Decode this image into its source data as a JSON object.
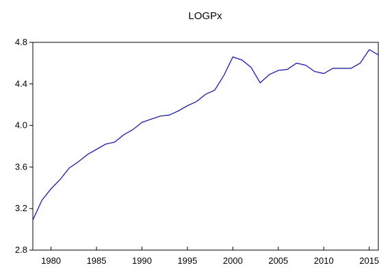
{
  "chart_data": {
    "type": "line",
    "title": "LOGPx",
    "x": [
      1978,
      1979,
      1980,
      1981,
      1982,
      1983,
      1984,
      1985,
      1986,
      1987,
      1988,
      1989,
      1990,
      1991,
      1992,
      1993,
      1994,
      1995,
      1996,
      1997,
      1998,
      1999,
      2000,
      2001,
      2002,
      2003,
      2004,
      2005,
      2006,
      2007,
      2008,
      2009,
      2010,
      2011,
      2012,
      2013,
      2014,
      2015,
      2016
    ],
    "series": [
      {
        "name": "LOGPx",
        "color": "#0000ff",
        "values": [
          3.09,
          3.28,
          3.39,
          3.48,
          3.59,
          3.65,
          3.72,
          3.77,
          3.82,
          3.84,
          3.91,
          3.96,
          4.03,
          4.06,
          4.09,
          4.1,
          4.14,
          4.19,
          4.23,
          4.3,
          4.34,
          4.48,
          4.66,
          4.63,
          4.56,
          4.41,
          4.49,
          4.53,
          4.54,
          4.6,
          4.58,
          4.52,
          4.5,
          4.55,
          4.55,
          4.55,
          4.6,
          4.73,
          4.68
        ]
      }
    ],
    "xlim": [
      1978,
      2016
    ],
    "xticks": [
      1980,
      1985,
      1990,
      1995,
      2000,
      2005,
      2010,
      2015
    ],
    "ylim": [
      2.8,
      4.8
    ],
    "yticks": [
      {
        "value": 2.8,
        "label": "2.8"
      },
      {
        "value": 3.2,
        "label": "3.2"
      },
      {
        "value": 3.6,
        "label": "3.6"
      },
      {
        "value": 4.0,
        "label": "4.0"
      },
      {
        "value": 4.4,
        "label": "4.4"
      },
      {
        "value": 4.8,
        "label": "4.8"
      }
    ]
  }
}
